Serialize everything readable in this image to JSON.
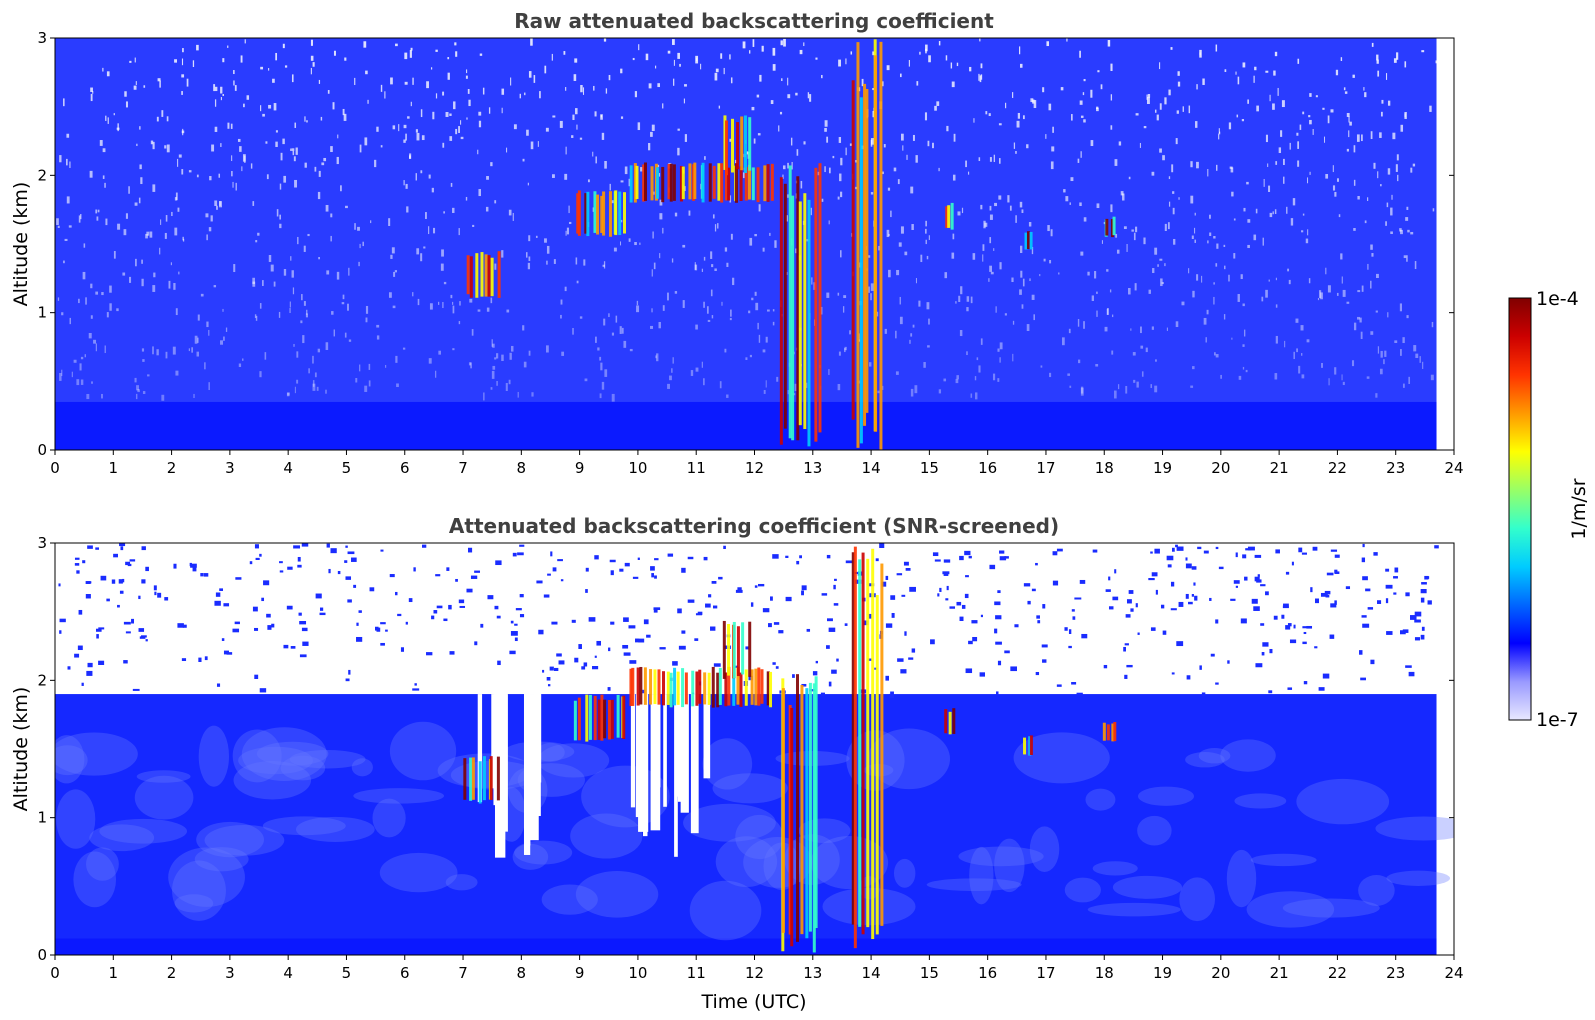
{
  "chart_data": [
    {
      "type": "heatmap",
      "title": "Raw attenuated backscattering coefficient",
      "xlabel": "",
      "ylabel": "Altitude (km)",
      "xlim": [
        0,
        24
      ],
      "ylim": [
        0,
        3
      ],
      "xticks": [
        "0",
        "1",
        "2",
        "3",
        "4",
        "5",
        "6",
        "7",
        "8",
        "9",
        "10",
        "11",
        "12",
        "13",
        "14",
        "15",
        "16",
        "17",
        "18",
        "19",
        "20",
        "21",
        "22",
        "23",
        "24"
      ],
      "yticks": [
        "0",
        "1",
        "2",
        "3"
      ],
      "data_end_time": 23.7,
      "screened": false,
      "cloud_features": [
        {
          "time_start": 7.0,
          "time_end": 7.6,
          "alt_bottom": 1.1,
          "alt_top": 1.45
        },
        {
          "time_start": 8.9,
          "time_end": 9.8,
          "alt_bottom": 1.55,
          "alt_top": 1.9
        },
        {
          "time_start": 9.8,
          "time_end": 12.3,
          "alt_bottom": 1.8,
          "alt_top": 2.1
        },
        {
          "time_start": 11.4,
          "time_end": 11.9,
          "alt_bottom": 2.0,
          "alt_top": 2.45
        },
        {
          "time_start": 12.4,
          "time_end": 13.1,
          "alt_bottom": 0.0,
          "alt_top": 2.1
        },
        {
          "time_start": 13.6,
          "time_end": 14.2,
          "alt_bottom": 0.0,
          "alt_top": 3.0
        },
        {
          "time_start": 15.25,
          "time_end": 15.4,
          "alt_bottom": 1.6,
          "alt_top": 1.8
        },
        {
          "time_start": 16.6,
          "time_end": 16.75,
          "alt_bottom": 1.45,
          "alt_top": 1.6
        },
        {
          "time_start": 17.95,
          "time_end": 18.2,
          "alt_bottom": 1.55,
          "alt_top": 1.7
        }
      ]
    },
    {
      "type": "heatmap",
      "title": "Attenuated backscattering coefficient (SNR-screened)",
      "xlabel": "Time (UTC)",
      "ylabel": "Altitude (km)",
      "xlim": [
        0,
        24
      ],
      "ylim": [
        0,
        3
      ],
      "xticks": [
        "0",
        "1",
        "2",
        "3",
        "4",
        "5",
        "6",
        "7",
        "8",
        "9",
        "10",
        "11",
        "12",
        "13",
        "14",
        "15",
        "16",
        "17",
        "18",
        "19",
        "20",
        "21",
        "22",
        "23",
        "24"
      ],
      "yticks": [
        "0",
        "1",
        "2",
        "3"
      ],
      "data_end_time": 23.7,
      "screened": true,
      "boundary_layer_top_km": 1.9,
      "cloud_features": [
        {
          "time_start": 7.0,
          "time_end": 7.6,
          "alt_bottom": 1.1,
          "alt_top": 1.45
        },
        {
          "time_start": 8.9,
          "time_end": 9.8,
          "alt_bottom": 1.55,
          "alt_top": 1.9
        },
        {
          "time_start": 9.8,
          "time_end": 12.3,
          "alt_bottom": 1.8,
          "alt_top": 2.1
        },
        {
          "time_start": 11.4,
          "time_end": 11.9,
          "alt_bottom": 2.0,
          "alt_top": 2.45
        },
        {
          "time_start": 12.4,
          "time_end": 13.1,
          "alt_bottom": 0.0,
          "alt_top": 2.1
        },
        {
          "time_start": 13.6,
          "time_end": 14.2,
          "alt_bottom": 0.0,
          "alt_top": 3.0
        },
        {
          "time_start": 15.25,
          "time_end": 15.4,
          "alt_bottom": 1.6,
          "alt_top": 1.8
        },
        {
          "time_start": 16.6,
          "time_end": 16.75,
          "alt_bottom": 1.45,
          "alt_top": 1.6
        },
        {
          "time_start": 17.95,
          "time_end": 18.2,
          "alt_bottom": 1.55,
          "alt_top": 1.7
        }
      ]
    }
  ],
  "colorbar": {
    "min_label": "1e-7",
    "max_label": "1e-4",
    "unit_label": "1/m/sr",
    "colormap": [
      "#e8e8ff",
      "#9999ff",
      "#0000ff",
      "#0066ff",
      "#00ccff",
      "#33ffcc",
      "#99ff66",
      "#ffff00",
      "#ff9900",
      "#ff3300",
      "#cc0000",
      "#800000"
    ]
  }
}
